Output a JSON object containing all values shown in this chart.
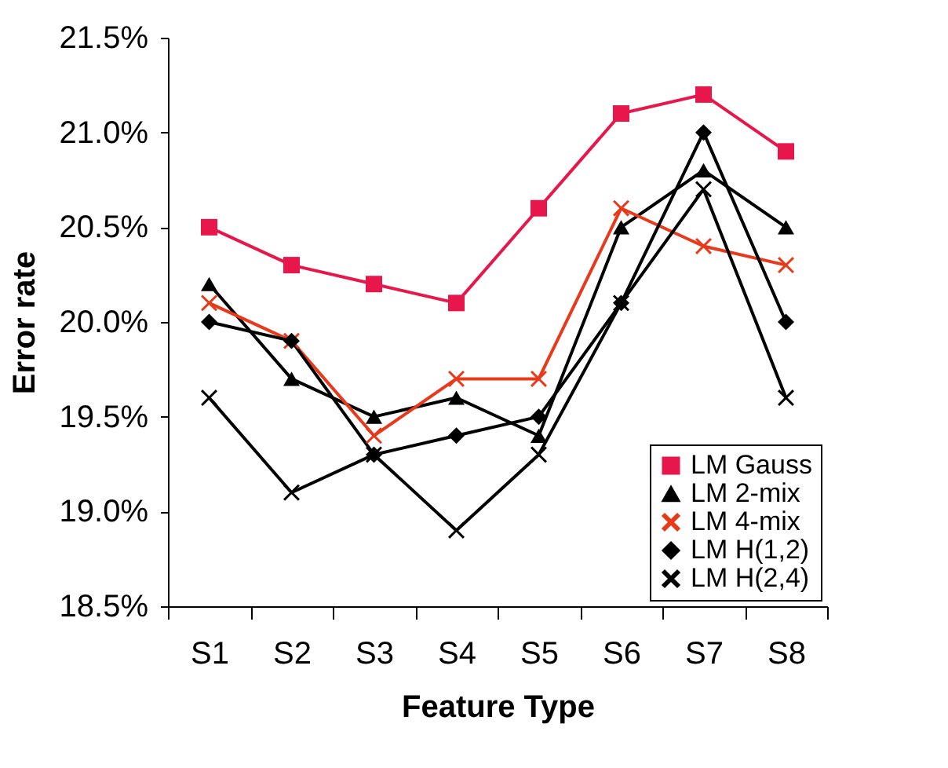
{
  "chart_data": {
    "type": "line",
    "xlabel": "Feature Type",
    "ylabel": "Error rate",
    "categories": [
      "S1",
      "S2",
      "S3",
      "S4",
      "S5",
      "S6",
      "S7",
      "S8"
    ],
    "series": [
      {
        "name": "LM Gauss",
        "color": "#e8174b",
        "marker": "square",
        "values": [
          20.5,
          20.3,
          20.2,
          20.1,
          20.6,
          21.1,
          21.2,
          20.9
        ]
      },
      {
        "name": "LM 2-mix",
        "color": "#000000",
        "marker": "triangle",
        "values": [
          20.2,
          19.7,
          19.5,
          19.6,
          19.4,
          20.5,
          20.8,
          20.5
        ]
      },
      {
        "name": "LM 4-mix",
        "color": "#e8391a",
        "marker": "cross",
        "values": [
          20.1,
          19.9,
          19.4,
          19.7,
          19.7,
          20.6,
          20.4,
          20.3
        ]
      },
      {
        "name": "LM H(1,2)",
        "color": "#000000",
        "marker": "diamond",
        "values": [
          20.0,
          19.9,
          19.3,
          19.4,
          19.5,
          20.1,
          21.0,
          20.0
        ]
      },
      {
        "name": "LM H(2,4)",
        "color": "#000000",
        "marker": "cross",
        "values": [
          19.6,
          19.1,
          19.3,
          18.9,
          19.3,
          20.1,
          20.7,
          19.6
        ]
      }
    ],
    "ylim": [
      18.5,
      21.5
    ],
    "yticks": [
      {
        "value": 18.5,
        "label": "18.5%"
      },
      {
        "value": 19.0,
        "label": "19.0%"
      },
      {
        "value": 19.5,
        "label": "19.5%"
      },
      {
        "value": 20.0,
        "label": "20.0%"
      },
      {
        "value": 20.5,
        "label": "20.5%"
      },
      {
        "value": 21.0,
        "label": "21.0%"
      },
      {
        "value": 21.5,
        "label": "21.5%"
      }
    ],
    "grid": false,
    "legend": "bottom right",
    "line_style": "solid"
  }
}
